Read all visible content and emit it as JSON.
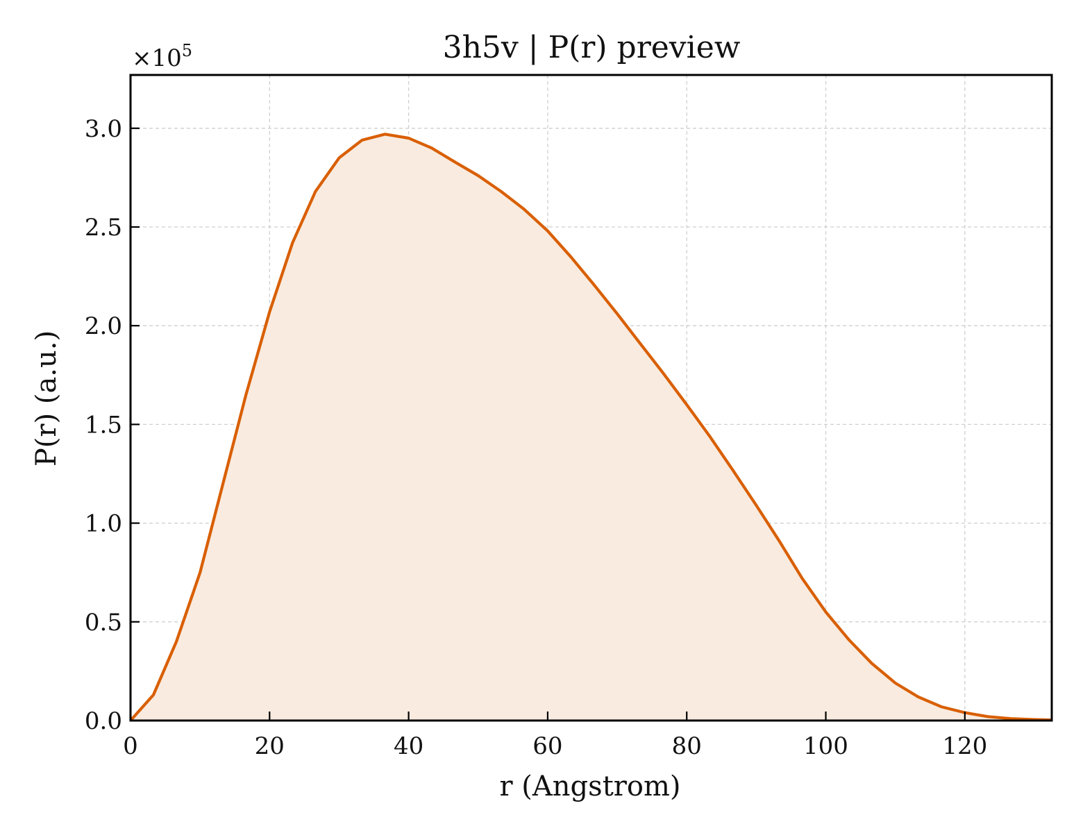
{
  "chart_data": {
    "type": "area",
    "title": "3h5v | P(r) preview",
    "xlabel": "r (Angstrom)",
    "ylabel": "P(r) (a.u.)",
    "y_multiplier": "×10",
    "y_multiplier_exponent": "5",
    "xlim": [
      0,
      132.5
    ],
    "ylim": [
      0,
      3.27
    ],
    "x_ticks": [
      0,
      20,
      40,
      60,
      80,
      100,
      120
    ],
    "x_tick_labels": [
      "0",
      "20",
      "40",
      "60",
      "80",
      "100",
      "120"
    ],
    "y_ticks": [
      0.0,
      0.5,
      1.0,
      1.5,
      2.0,
      2.5,
      3.0
    ],
    "y_tick_labels": [
      "0.0",
      "0.5",
      "1.0",
      "1.5",
      "2.0",
      "2.5",
      "3.0"
    ],
    "grid": true,
    "line_color": "#d95f02",
    "fill_color": "#f9ebe0",
    "series": [
      {
        "x": [
          0,
          3.3,
          6.6,
          10,
          13.3,
          16.6,
          20,
          23.3,
          26.6,
          30,
          33.3,
          36.6,
          40,
          43.3,
          46.6,
          50,
          53.3,
          56.6,
          60,
          63.3,
          66.6,
          70,
          73.3,
          76.6,
          80,
          83.3,
          86.6,
          90,
          93.3,
          96.6,
          100,
          103.3,
          106.6,
          110,
          113.3,
          116.6,
          120,
          123.3,
          126.6,
          130,
          132.5
        ],
        "y": [
          0.0,
          0.13,
          0.4,
          0.75,
          1.2,
          1.65,
          2.07,
          2.42,
          2.68,
          2.85,
          2.94,
          2.97,
          2.95,
          2.9,
          2.83,
          2.76,
          2.68,
          2.59,
          2.48,
          2.35,
          2.21,
          2.06,
          1.91,
          1.76,
          1.6,
          1.44,
          1.27,
          1.09,
          0.91,
          0.72,
          0.55,
          0.41,
          0.29,
          0.19,
          0.12,
          0.07,
          0.04,
          0.02,
          0.01,
          0.005,
          0.003
        ]
      }
    ]
  }
}
